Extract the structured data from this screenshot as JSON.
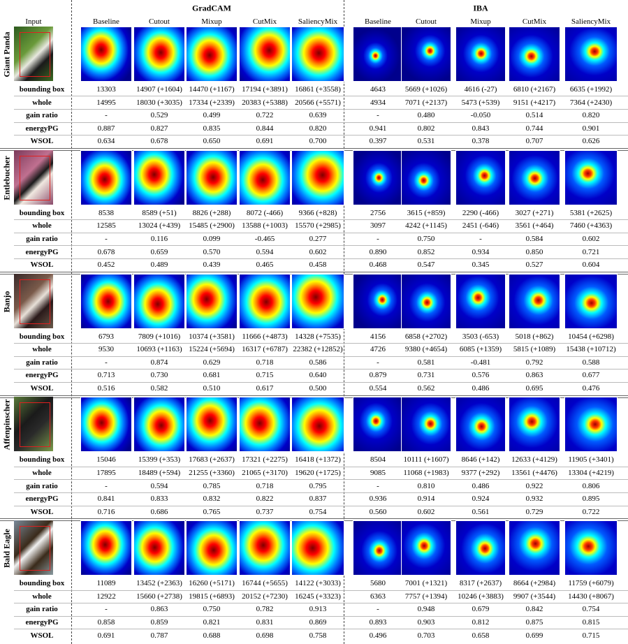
{
  "header": {
    "groups": [
      "GradCAM",
      "IBA"
    ],
    "columns": [
      "Input",
      "Baseline",
      "Cutout",
      "Mixup",
      "CutMix",
      "SaliencyMix",
      "Baseline",
      "Cutout",
      "Mixup",
      "CutMix",
      "SaliencyMix"
    ]
  },
  "blocks": [
    {
      "name": "Giant Panda",
      "rows": [
        {
          "label": "bounding box",
          "values": [
            "13303",
            "14907 (+1604)",
            "14470 (+1167)",
            "17194 (+3891)",
            "16861 (+3558)",
            "4643",
            "5669 (+1026)",
            "4616 (-27)",
            "6810 (+2167)",
            "6635 (+1992)"
          ]
        },
        {
          "label": "whole",
          "values": [
            "14995",
            "18030 (+3035)",
            "17334 (+2339)",
            "20383 (+5388)",
            "20566 (+5571)",
            "4934",
            "7071 (+2137)",
            "5473 (+539)",
            "9151 (+4217)",
            "7364 (+2430)"
          ]
        },
        {
          "label": "gain ratio",
          "values": [
            "-",
            "0.529",
            "0.499",
            "0.722",
            "0.639",
            "-",
            "0.480",
            "-0.050",
            "0.514",
            "0.820"
          ]
        },
        {
          "label": "energyPG",
          "values": [
            "0.887",
            "0.827",
            "0.835",
            "0.844",
            "0.820",
            "0.941",
            "0.802",
            "0.843",
            "0.744",
            "0.901"
          ]
        },
        {
          "label": "WSOL",
          "values": [
            "0.634",
            "0.678",
            "0.650",
            "0.691",
            "0.700",
            "0.397",
            "0.531",
            "0.378",
            "0.707",
            "0.626"
          ]
        }
      ]
    },
    {
      "name": "Entlebucher",
      "rows": [
        {
          "label": "bounding box",
          "values": [
            "8538",
            "8589 (+51)",
            "8826 (+288)",
            "8072 (-466)",
            "9366 (+828)",
            "2756",
            "3615 (+859)",
            "2290 (-466)",
            "3027 (+271)",
            "5381 (+2625)"
          ]
        },
        {
          "label": "whole",
          "values": [
            "12585",
            "13024 (+439)",
            "15485 (+2900)",
            "13588 (+1003)",
            "15570 (+2985)",
            "3097",
            "4242 (+1145)",
            "2451 (-646)",
            "3561 (+464)",
            "7460 (+4363)"
          ]
        },
        {
          "label": "gain ratio",
          "values": [
            "-",
            "0.116",
            "0.099",
            "-0.465",
            "0.277",
            "-",
            "0.750",
            "-",
            "0.584",
            "0.602"
          ]
        },
        {
          "label": "energyPG",
          "values": [
            "0.678",
            "0.659",
            "0.570",
            "0.594",
            "0.602",
            "0.890",
            "0.852",
            "0.934",
            "0.850",
            "0.721"
          ]
        },
        {
          "label": "WSOL",
          "values": [
            "0.452",
            "0.489",
            "0.439",
            "0.465",
            "0.458",
            "0.468",
            "0.547",
            "0.345",
            "0.527",
            "0.604"
          ]
        }
      ]
    },
    {
      "name": "Banjo",
      "rows": [
        {
          "label": "bounding box",
          "values": [
            "6793",
            "7809 (+1016)",
            "10374 (+3581)",
            "11666 (+4873)",
            "14328 (+7535)",
            "4156",
            "6858 (+2702)",
            "3503 (-653)",
            "5018 (+862)",
            "10454 (+6298)"
          ]
        },
        {
          "label": "whole",
          "values": [
            "9530",
            "10693 (+1163)",
            "15224 (+5694)",
            "16317 (+6787)",
            "22382 (+12852)",
            "4726",
            "9380 (+4654)",
            "6085 (+1359)",
            "5815 (+1089)",
            "15438 (+10712)"
          ]
        },
        {
          "label": "gain ratio",
          "values": [
            "-",
            "0.874",
            "0.629",
            "0.718",
            "0.586",
            "-",
            "0.581",
            "-0.481",
            "0.792",
            "0.588"
          ]
        },
        {
          "label": "energyPG",
          "values": [
            "0.713",
            "0.730",
            "0.681",
            "0.715",
            "0.640",
            "0.879",
            "0.731",
            "0.576",
            "0.863",
            "0.677"
          ]
        },
        {
          "label": "WSOL",
          "values": [
            "0.516",
            "0.582",
            "0.510",
            "0.617",
            "0.500",
            "0.554",
            "0.562",
            "0.486",
            "0.695",
            "0.476"
          ]
        }
      ]
    },
    {
      "name": "Affenpinscher",
      "rows": [
        {
          "label": "bounding box",
          "values": [
            "15046",
            "15399 (+353)",
            "17683 (+2637)",
            "17321 (+2275)",
            "16418 (+1372)",
            "8504",
            "10111 (+1607)",
            "8646 (+142)",
            "12633 (+4129)",
            "11905 (+3401)"
          ]
        },
        {
          "label": "whole",
          "values": [
            "17895",
            "18489 (+594)",
            "21255 (+3360)",
            "21065 (+3170)",
            "19620 (+1725)",
            "9085",
            "11068 (+1983)",
            "9377 (+292)",
            "13561 (+4476)",
            "13304 (+4219)"
          ]
        },
        {
          "label": "gain ratio",
          "values": [
            "-",
            "0.594",
            "0.785",
            "0.718",
            "0.795",
            "-",
            "0.810",
            "0.486",
            "0.922",
            "0.806"
          ]
        },
        {
          "label": "energyPG",
          "values": [
            "0.841",
            "0.833",
            "0.832",
            "0.822",
            "0.837",
            "0.936",
            "0.914",
            "0.924",
            "0.932",
            "0.895"
          ]
        },
        {
          "label": "WSOL",
          "values": [
            "0.716",
            "0.686",
            "0.765",
            "0.737",
            "0.754",
            "0.560",
            "0.602",
            "0.561",
            "0.729",
            "0.722"
          ]
        }
      ]
    },
    {
      "name": "Bald Eagle",
      "rows": [
        {
          "label": "bounding box",
          "values": [
            "11089",
            "13452 (+2363)",
            "16260 (+5171)",
            "16744 (+5655)",
            "14122 (+3033)",
            "5680",
            "7001 (+1321)",
            "8317 (+2637)",
            "8664 (+2984)",
            "11759 (+6079)"
          ]
        },
        {
          "label": "whole",
          "values": [
            "12922",
            "15660 (+2738)",
            "19815 (+6893)",
            "20152 (+7230)",
            "16245 (+3323)",
            "6363",
            "7757 (+1394)",
            "10246 (+3883)",
            "9907 (+3544)",
            "14430 (+8067)"
          ]
        },
        {
          "label": "gain ratio",
          "values": [
            "-",
            "0.863",
            "0.750",
            "0.782",
            "0.913",
            "-",
            "0.948",
            "0.679",
            "0.842",
            "0.754"
          ]
        },
        {
          "label": "energyPG",
          "values": [
            "0.858",
            "0.859",
            "0.821",
            "0.831",
            "0.869",
            "0.893",
            "0.903",
            "0.812",
            "0.875",
            "0.815"
          ]
        },
        {
          "label": "WSOL",
          "values": [
            "0.691",
            "0.787",
            "0.688",
            "0.698",
            "0.758",
            "0.496",
            "0.703",
            "0.658",
            "0.699",
            "0.715"
          ]
        }
      ]
    }
  ]
}
